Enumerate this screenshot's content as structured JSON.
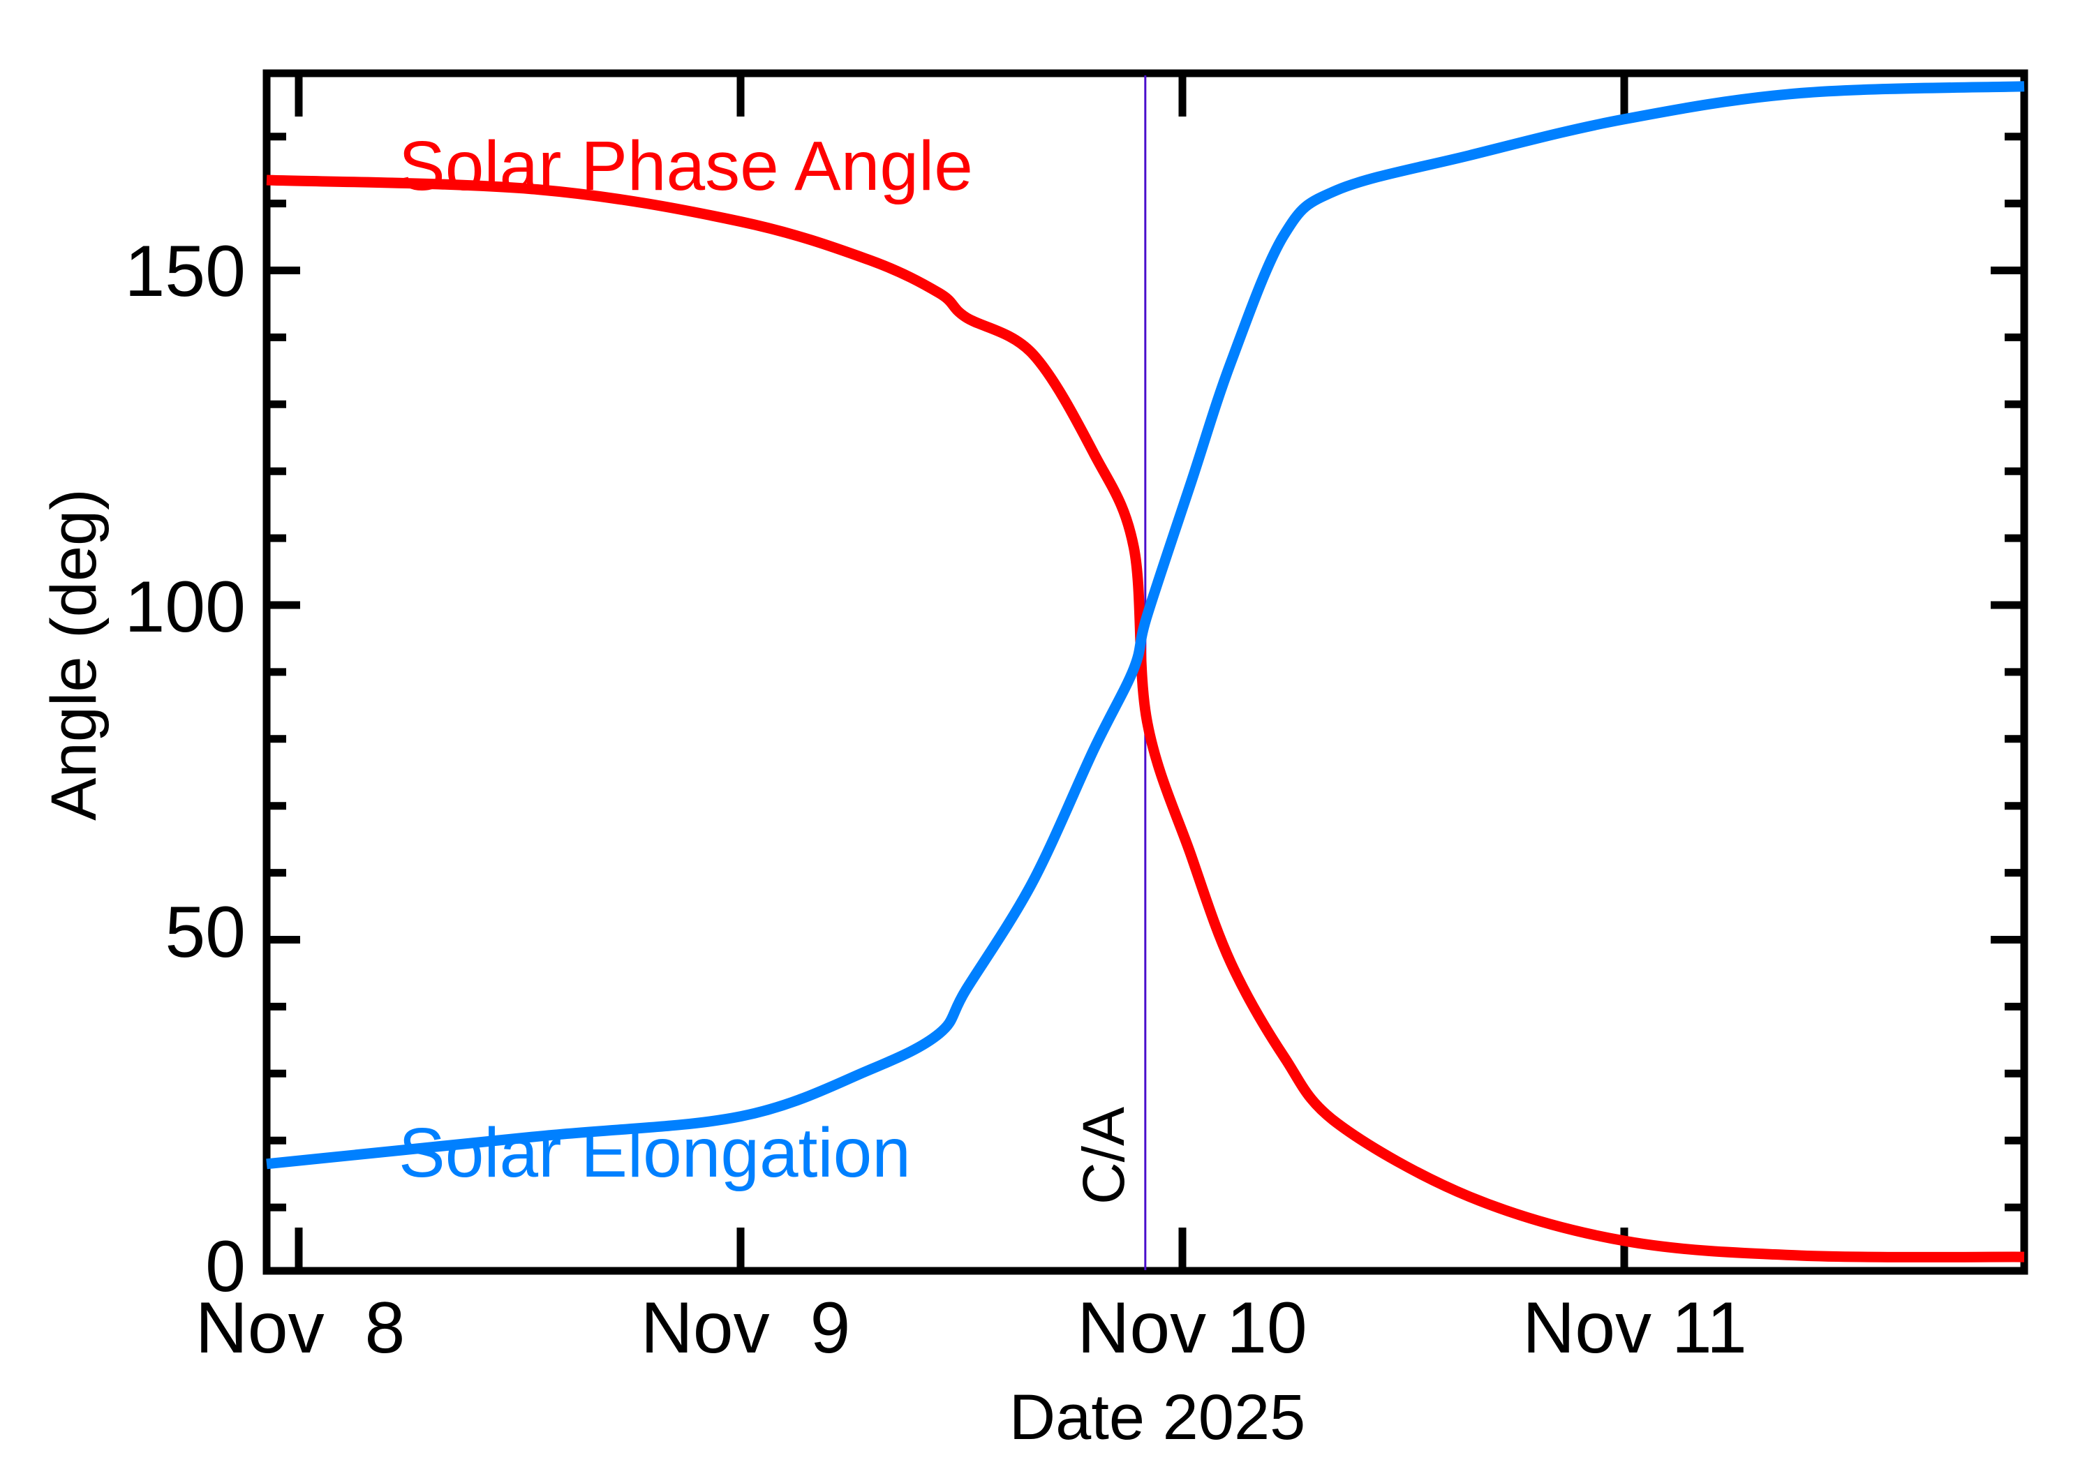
{
  "chart_data": {
    "type": "line",
    "title": "",
    "xlabel": "Date 2025",
    "ylabel": "Angle (deg)",
    "ylim": [
      0,
      180
    ],
    "xlim_days_from_nov8": [
      -0.082,
      3.924
    ],
    "grid": false,
    "legend_position": "inline labels",
    "x_tick_labels": [
      "Nov  8",
      "Nov  9",
      "Nov 10",
      "Nov 11"
    ],
    "x_tick_days": [
      0,
      1,
      2,
      3
    ],
    "y_tick_labels": [
      "0",
      "50",
      "100",
      "150"
    ],
    "y_tick_values": [
      0,
      50,
      100,
      150
    ],
    "y_minor_step": 10,
    "x": [
      -0.082,
      0.54,
      1.0,
      1.29,
      1.45,
      1.51,
      1.66,
      1.8,
      1.89,
      1.92,
      2.02,
      2.11,
      2.23,
      2.35,
      2.65,
      3.0,
      3.4,
      3.924
    ],
    "series": [
      {
        "name": "Solar Phase Angle",
        "color": "#ff0000",
        "values": [
          163.5,
          162.1,
          157.3,
          151.6,
          146.6,
          143.0,
          137.6,
          122.6,
          108.6,
          82.6,
          62.5,
          46.5,
          32.5,
          22.6,
          11.6,
          5.0,
          2.8,
          2.6
        ]
      },
      {
        "name": "Solar Elongation",
        "color": "#0080ff",
        "values": [
          16.5,
          20.6,
          23.6,
          30.5,
          36.0,
          42.5,
          58.5,
          78.5,
          90.5,
          98.4,
          118.4,
          136.3,
          155.3,
          162.0,
          167.2,
          172.6,
          176.5,
          177.5
        ]
      }
    ],
    "annotations": [
      {
        "text": "C/A",
        "type": "vertical-line",
        "x_day": 1.916,
        "color": "#4a0ecc"
      }
    ]
  },
  "labels": {
    "phase": "Solar Phase Angle",
    "elongation": "Solar Elongation",
    "ca": "C/A",
    "xlabel": "Date 2025",
    "ylabel": "Angle (deg)",
    "xticks": [
      "Nov  8",
      "Nov  9",
      "Nov 10",
      "Nov 11"
    ],
    "yticks": [
      "0",
      "50",
      "100",
      "150"
    ]
  }
}
